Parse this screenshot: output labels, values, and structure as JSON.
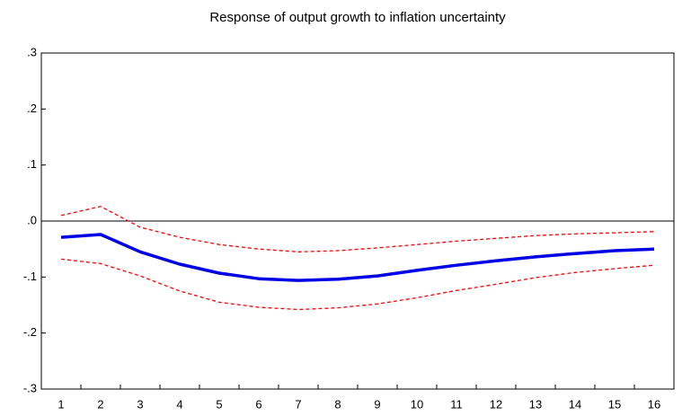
{
  "chart_data": {
    "type": "line",
    "title": "Response of output growth to inflation uncertainty",
    "categories": [
      "1",
      "2",
      "3",
      "4",
      "5",
      "6",
      "7",
      "8",
      "9",
      "10",
      "11",
      "12",
      "13",
      "14",
      "15",
      "16"
    ],
    "series": [
      {
        "color": "#0000e6",
        "dashed": false,
        "width": 3.5,
        "values": [
          -0.029,
          -0.024,
          -0.055,
          -0.077,
          -0.093,
          -0.103,
          -0.106,
          -0.104,
          -0.098,
          -0.088,
          -0.079,
          -0.071,
          -0.064,
          -0.058,
          -0.053,
          -0.05
        ]
      },
      {
        "color": "#ff0000",
        "dashed": true,
        "width": 1.3,
        "values": [
          0.01,
          0.026,
          -0.011,
          -0.029,
          -0.042,
          -0.05,
          -0.055,
          -0.053,
          -0.048,
          -0.042,
          -0.036,
          -0.031,
          -0.026,
          -0.023,
          -0.021,
          -0.019
        ]
      },
      {
        "color": "#ff0000",
        "dashed": true,
        "width": 1.3,
        "values": [
          -0.068,
          -0.076,
          -0.098,
          -0.125,
          -0.145,
          -0.154,
          -0.158,
          -0.155,
          -0.148,
          -0.137,
          -0.124,
          -0.113,
          -0.101,
          -0.092,
          -0.085,
          -0.079
        ]
      }
    ],
    "ylim": [
      -0.3,
      0.3
    ],
    "yticks": [
      {
        "value": -0.3,
        "label": "-.3"
      },
      {
        "value": -0.2,
        "label": "-.2"
      },
      {
        "value": -0.1,
        "label": "-.1"
      },
      {
        "value": 0,
        "label": ".0"
      },
      {
        "value": 0.1,
        "label": ".1"
      },
      {
        "value": 0.2,
        "label": ".2"
      },
      {
        "value": 0.3,
        "label": ".3"
      }
    ],
    "zero_line": true,
    "grid": false
  }
}
